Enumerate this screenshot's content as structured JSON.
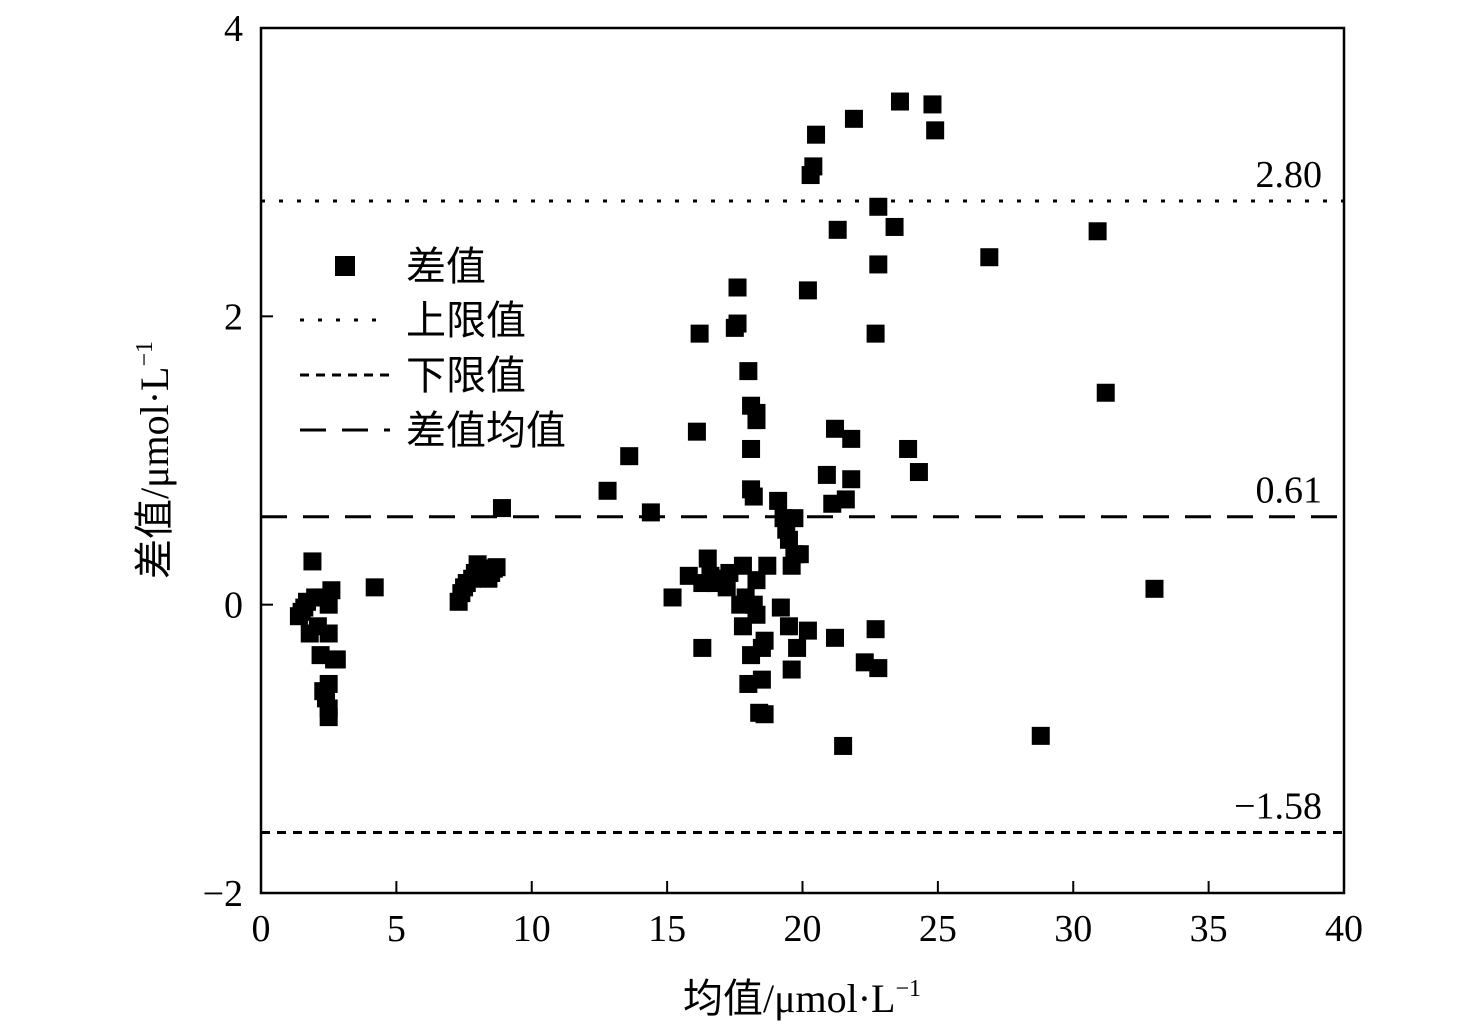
{
  "chart_data": {
    "type": "scatter",
    "title": "",
    "xlabel": "均值/μmol·L",
    "xlabel_sup": "−1",
    "ylabel": "差值/μmol·L",
    "ylabel_sup": "−1",
    "xlim": [
      0,
      40
    ],
    "ylim": [
      -2,
      4
    ],
    "xticks": [
      0,
      5,
      10,
      15,
      20,
      25,
      30,
      35,
      40
    ],
    "yticks": [
      -2,
      0,
      2,
      4
    ],
    "xtick_labels": [
      "0",
      "5",
      "10",
      "15",
      "20",
      "25",
      "30",
      "35",
      "40"
    ],
    "ytick_labels": [
      "−2",
      "0",
      "2",
      "4"
    ],
    "grid": false,
    "legend_placement": "upper-left",
    "colors": {
      "marker": "#000000",
      "lines": "#000000"
    },
    "series": [
      {
        "name": "差值",
        "kind": "scatter",
        "marker": "square",
        "points": [
          [
            1.4,
            -0.08
          ],
          [
            1.5,
            -0.05
          ],
          [
            1.6,
            -0.02
          ],
          [
            1.7,
            0.02
          ],
          [
            1.8,
            -0.2
          ],
          [
            1.9,
            0.3
          ],
          [
            2.0,
            0.05
          ],
          [
            2.1,
            -0.15
          ],
          [
            2.2,
            -0.35
          ],
          [
            2.3,
            -0.6
          ],
          [
            2.4,
            0.05
          ],
          [
            2.4,
            -0.65
          ],
          [
            2.5,
            -0.72
          ],
          [
            2.5,
            -0.78
          ],
          [
            2.5,
            -0.55
          ],
          [
            2.5,
            -0.2
          ],
          [
            2.5,
            0.0
          ],
          [
            2.6,
            0.1
          ],
          [
            2.7,
            -0.38
          ],
          [
            2.8,
            -0.38
          ],
          [
            4.2,
            0.12
          ],
          [
            7.3,
            0.02
          ],
          [
            7.4,
            0.08
          ],
          [
            7.5,
            0.12
          ],
          [
            7.6,
            0.15
          ],
          [
            7.8,
            0.18
          ],
          [
            7.9,
            0.22
          ],
          [
            8.0,
            0.28
          ],
          [
            8.2,
            0.25
          ],
          [
            8.3,
            0.2
          ],
          [
            8.4,
            0.18
          ],
          [
            8.5,
            0.22
          ],
          [
            8.6,
            0.25
          ],
          [
            8.7,
            0.26
          ],
          [
            8.9,
            0.67
          ],
          [
            12.8,
            0.79
          ],
          [
            13.6,
            1.03
          ],
          [
            14.4,
            0.64
          ],
          [
            15.2,
            0.05
          ],
          [
            15.8,
            0.2
          ],
          [
            16.1,
            1.2
          ],
          [
            16.2,
            1.88
          ],
          [
            16.3,
            -0.3
          ],
          [
            16.3,
            0.15
          ],
          [
            16.5,
            0.32
          ],
          [
            16.6,
            0.2
          ],
          [
            16.8,
            0.15
          ],
          [
            17.0,
            0.18
          ],
          [
            17.2,
            0.12
          ],
          [
            17.3,
            0.22
          ],
          [
            17.5,
            1.92
          ],
          [
            17.6,
            1.95
          ],
          [
            17.6,
            2.2
          ],
          [
            17.7,
            0.0
          ],
          [
            17.8,
            -0.15
          ],
          [
            17.8,
            0.27
          ],
          [
            17.9,
            0.05
          ],
          [
            18.0,
            1.62
          ],
          [
            18.0,
            -0.55
          ],
          [
            18.1,
            1.38
          ],
          [
            18.1,
            1.08
          ],
          [
            18.1,
            0.8
          ],
          [
            18.1,
            -0.35
          ],
          [
            18.2,
            0.75
          ],
          [
            18.2,
            0.0
          ],
          [
            18.3,
            1.28
          ],
          [
            18.3,
            1.33
          ],
          [
            18.3,
            0.17
          ],
          [
            18.3,
            -0.07
          ],
          [
            18.4,
            -0.75
          ],
          [
            18.5,
            -0.3
          ],
          [
            18.5,
            -0.52
          ],
          [
            18.6,
            -0.25
          ],
          [
            18.6,
            -0.76
          ],
          [
            18.7,
            0.27
          ],
          [
            19.1,
            0.72
          ],
          [
            19.2,
            -0.02
          ],
          [
            19.3,
            0.6
          ],
          [
            19.4,
            0.52
          ],
          [
            19.5,
            0.45
          ],
          [
            19.5,
            -0.15
          ],
          [
            19.6,
            0.27
          ],
          [
            19.6,
            -0.45
          ],
          [
            19.7,
            0.6
          ],
          [
            19.7,
            0.35
          ],
          [
            19.8,
            -0.3
          ],
          [
            19.9,
            0.35
          ],
          [
            20.2,
            -0.18
          ],
          [
            20.2,
            2.18
          ],
          [
            20.3,
            2.98
          ],
          [
            20.4,
            3.04
          ],
          [
            20.5,
            3.26
          ],
          [
            20.9,
            0.9
          ],
          [
            21.1,
            0.7
          ],
          [
            21.2,
            1.22
          ],
          [
            21.2,
            -0.23
          ],
          [
            21.3,
            2.6
          ],
          [
            21.5,
            -0.98
          ],
          [
            21.6,
            0.73
          ],
          [
            21.8,
            1.15
          ],
          [
            21.8,
            0.87
          ],
          [
            21.9,
            3.37
          ],
          [
            22.3,
            -0.4
          ],
          [
            22.7,
            1.88
          ],
          [
            22.7,
            -0.17
          ],
          [
            22.8,
            2.76
          ],
          [
            22.8,
            2.36
          ],
          [
            22.8,
            -0.44
          ],
          [
            23.4,
            2.62
          ],
          [
            23.6,
            3.49
          ],
          [
            23.9,
            1.08
          ],
          [
            24.3,
            0.92
          ],
          [
            24.8,
            3.47
          ],
          [
            24.9,
            3.29
          ],
          [
            26.9,
            2.41
          ],
          [
            28.8,
            -0.91
          ],
          [
            30.9,
            2.59
          ],
          [
            31.2,
            1.47
          ],
          [
            33.0,
            0.11
          ]
        ]
      },
      {
        "name": "上限值",
        "kind": "hline",
        "y": 2.8,
        "label": "2.80",
        "dash": "4 14"
      },
      {
        "name": "下限值",
        "kind": "hline",
        "y": -1.58,
        "label": "−1.58",
        "dash": "9 7"
      },
      {
        "name": "差值均值",
        "kind": "hline",
        "y": 0.61,
        "label": "0.61",
        "dash": "26 16"
      }
    ]
  }
}
